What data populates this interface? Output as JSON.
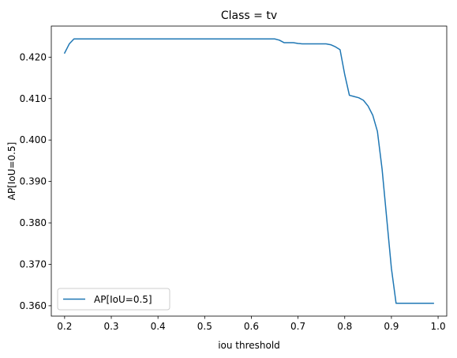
{
  "chart_data": {
    "type": "line",
    "title": "Class = tv",
    "xlabel": "iou threshold",
    "ylabel": "AP[IoU=0.5]",
    "xlim": [
      0.1715,
      1.0185
    ],
    "ylim": [
      0.3575,
      0.4275
    ],
    "xticks": [
      0.2,
      0.3,
      0.4,
      0.5,
      0.6,
      0.7,
      0.8,
      0.9,
      1.0
    ],
    "xtick_labels": [
      "0.2",
      "0.3",
      "0.4",
      "0.5",
      "0.6",
      "0.7",
      "0.8",
      "0.9",
      "1.0"
    ],
    "yticks": [
      0.36,
      0.37,
      0.38,
      0.39,
      0.4,
      0.41,
      0.42
    ],
    "ytick_labels": [
      "0.360",
      "0.370",
      "0.380",
      "0.390",
      "0.400",
      "0.410",
      "0.420"
    ],
    "grid": false,
    "legend_position": "lower left",
    "series": [
      {
        "name": "AP[IoU=0.5]",
        "color": "#1f77b4",
        "x": [
          0.2,
          0.21,
          0.22,
          0.3,
          0.4,
          0.5,
          0.6,
          0.65,
          0.66,
          0.67,
          0.69,
          0.7,
          0.71,
          0.72,
          0.73,
          0.74,
          0.75,
          0.76,
          0.77,
          0.78,
          0.79,
          0.8,
          0.81,
          0.82,
          0.83,
          0.84,
          0.85,
          0.86,
          0.87,
          0.88,
          0.89,
          0.9,
          0.91,
          0.92,
          0.95,
          0.99
        ],
        "y": [
          0.421,
          0.4232,
          0.4244,
          0.4244,
          0.4244,
          0.4244,
          0.4244,
          0.4244,
          0.4241,
          0.4235,
          0.4235,
          0.4233,
          0.4232,
          0.4232,
          0.4232,
          0.4232,
          0.4232,
          0.4232,
          0.423,
          0.4225,
          0.4218,
          0.4158,
          0.4108,
          0.4105,
          0.4102,
          0.4096,
          0.4082,
          0.406,
          0.4021,
          0.393,
          0.381,
          0.369,
          0.3606,
          0.3606,
          0.3606,
          0.3606
        ]
      }
    ]
  }
}
